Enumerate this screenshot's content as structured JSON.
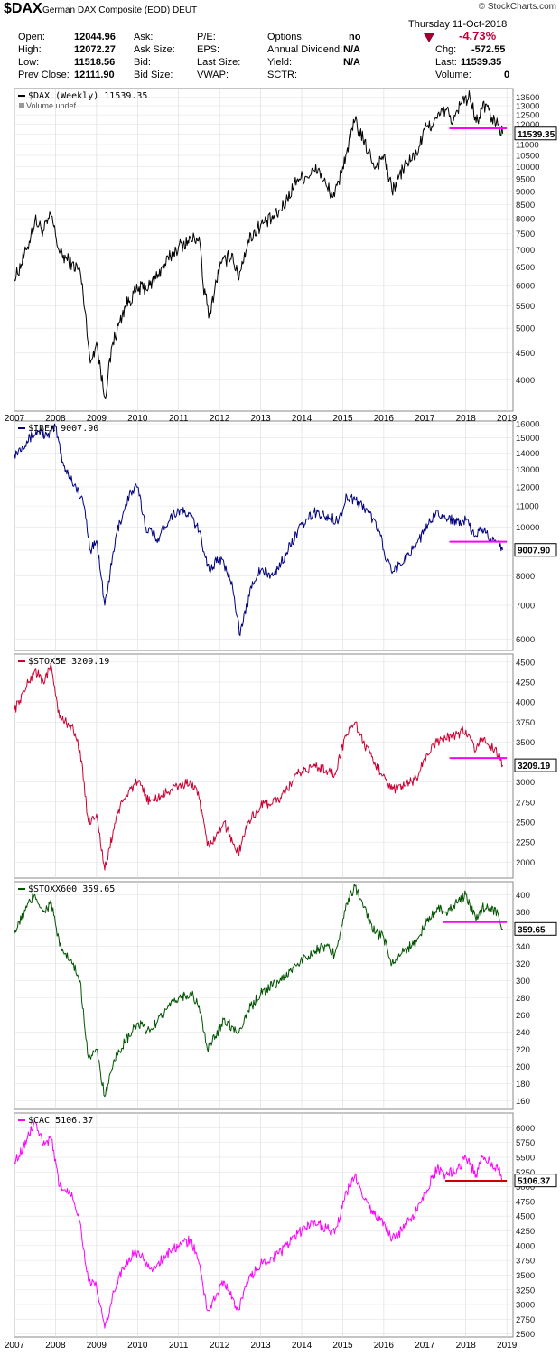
{
  "header": {
    "symbol": "$DAX",
    "company": "German DAX Composite (EOD)",
    "exchange": "DEUT",
    "brand": "© StockCharts.com",
    "date": "Thursday 11-Oct-2018",
    "change_pct": "-4.73%",
    "fields": {
      "open_label": "Open:",
      "open": "12044.96",
      "high_label": "High:",
      "high": "12072.27",
      "low_label": "Low:",
      "low": "11518.56",
      "prevclose_label": "Prev Close:",
      "prevclose": "12111.90",
      "ask_label": "Ask:",
      "asksize_label": "Ask Size:",
      "bid_label": "Bid:",
      "bidsize_label": "Bid Size:",
      "pe_label": "P/E:",
      "eps_label": "EPS:",
      "lastsize_label": "Last Size:",
      "vwap_label": "VWAP:",
      "options_label": "Options:",
      "options": "no",
      "dividend_label": "Annual Dividend:",
      "dividend": "N/A",
      "yield_label": "Yield:",
      "yield": "N/A",
      "sctr_label": "SCTR:",
      "chg_label": "Chg:",
      "chg": "-572.55",
      "last_label": "Last:",
      "last": "11539.35",
      "volume_label": "Volume:",
      "volume": "0"
    }
  },
  "chart_data": [
    {
      "type": "line",
      "id": "dax",
      "legend": "$DAX (Weekly) 11539.35",
      "legend2": "Volume undef",
      "color": "#000000",
      "scale": "log",
      "ylim": [
        3500,
        14000
      ],
      "yticks": [
        4000,
        4500,
        5000,
        5500,
        6000,
        6500,
        7000,
        7500,
        8000,
        8500,
        9000,
        9500,
        10000,
        10500,
        11000,
        11500,
        12000,
        12500,
        13000,
        13500
      ],
      "last_label": "11539.35",
      "hline": {
        "value": 11800,
        "from": 2017.6,
        "to": 2019.0,
        "color": "#ff00ff"
      },
      "anchors": [
        [
          2007.0,
          6150
        ],
        [
          2007.3,
          7000
        ],
        [
          2007.5,
          7950
        ],
        [
          2007.7,
          7600
        ],
        [
          2007.9,
          8100
        ],
        [
          2008.1,
          6900
        ],
        [
          2008.4,
          6600
        ],
        [
          2008.6,
          6400
        ],
        [
          2008.75,
          5200
        ],
        [
          2008.85,
          4300
        ],
        [
          2009.0,
          4700
        ],
        [
          2009.2,
          3700
        ],
        [
          2009.4,
          4700
        ],
        [
          2009.7,
          5500
        ],
        [
          2010.0,
          5900
        ],
        [
          2010.3,
          6000
        ],
        [
          2010.5,
          6300
        ],
        [
          2010.8,
          6800
        ],
        [
          2011.0,
          7100
        ],
        [
          2011.3,
          7300
        ],
        [
          2011.5,
          7400
        ],
        [
          2011.6,
          6000
        ],
        [
          2011.75,
          5300
        ],
        [
          2012.0,
          6500
        ],
        [
          2012.3,
          6900
        ],
        [
          2012.45,
          6200
        ],
        [
          2012.7,
          7300
        ],
        [
          2013.0,
          7800
        ],
        [
          2013.3,
          8000
        ],
        [
          2013.5,
          8300
        ],
        [
          2013.9,
          9500
        ],
        [
          2014.1,
          9600
        ],
        [
          2014.4,
          9900
        ],
        [
          2014.6,
          9200
        ],
        [
          2014.8,
          8800
        ],
        [
          2015.0,
          10000
        ],
        [
          2015.3,
          12200
        ],
        [
          2015.5,
          11200
        ],
        [
          2015.8,
          10000
        ],
        [
          2016.0,
          10500
        ],
        [
          2016.2,
          9000
        ],
        [
          2016.5,
          10000
        ],
        [
          2016.8,
          10600
        ],
        [
          2017.0,
          11700
        ],
        [
          2017.3,
          12300
        ],
        [
          2017.5,
          12800
        ],
        [
          2017.7,
          12200
        ],
        [
          2017.9,
          13200
        ],
        [
          2018.1,
          13500
        ],
        [
          2018.25,
          12100
        ],
        [
          2018.4,
          12800
        ],
        [
          2018.5,
          13100
        ],
        [
          2018.6,
          12400
        ],
        [
          2018.8,
          12000
        ],
        [
          2018.9,
          11540
        ]
      ]
    },
    {
      "type": "line",
      "id": "ibex",
      "legend": "$IBEX 9007.90",
      "color": "#000080",
      "scale": "log",
      "ylim": [
        5700,
        16200
      ],
      "yticks": [
        6000,
        7000,
        8000,
        9000,
        10000,
        11000,
        12000,
        13000,
        14000,
        15000,
        16000
      ],
      "last_label": "9007.90",
      "hline": {
        "value": 9350,
        "from": 2017.6,
        "to": 2019.0,
        "color": "#ff00ff"
      },
      "anchors": [
        [
          2007.0,
          13900
        ],
        [
          2007.3,
          14800
        ],
        [
          2007.6,
          15500
        ],
        [
          2007.8,
          15100
        ],
        [
          2008.0,
          15800
        ],
        [
          2008.2,
          13200
        ],
        [
          2008.5,
          12000
        ],
        [
          2008.7,
          11000
        ],
        [
          2008.85,
          9000
        ],
        [
          2009.0,
          9400
        ],
        [
          2009.2,
          7000
        ],
        [
          2009.5,
          9800
        ],
        [
          2009.8,
          11600
        ],
        [
          2010.0,
          12000
        ],
        [
          2010.2,
          10000
        ],
        [
          2010.5,
          9500
        ],
        [
          2010.8,
          10500
        ],
        [
          2011.0,
          10800
        ],
        [
          2011.3,
          10500
        ],
        [
          2011.5,
          9800
        ],
        [
          2011.75,
          8200
        ],
        [
          2012.0,
          8700
        ],
        [
          2012.3,
          7800
        ],
        [
          2012.5,
          6100
        ],
        [
          2012.8,
          7800
        ],
        [
          2013.0,
          8200
        ],
        [
          2013.3,
          8000
        ],
        [
          2013.5,
          8500
        ],
        [
          2013.9,
          9800
        ],
        [
          2014.3,
          10700
        ],
        [
          2014.6,
          10500
        ],
        [
          2014.9,
          10300
        ],
        [
          2015.1,
          11500
        ],
        [
          2015.3,
          11300
        ],
        [
          2015.6,
          10800
        ],
        [
          2015.9,
          9800
        ],
        [
          2016.0,
          9000
        ],
        [
          2016.2,
          8100
        ],
        [
          2016.5,
          8600
        ],
        [
          2016.8,
          9300
        ],
        [
          2017.0,
          9800
        ],
        [
          2017.3,
          10800
        ],
        [
          2017.5,
          10400
        ],
        [
          2017.8,
          10300
        ],
        [
          2018.0,
          10300
        ],
        [
          2018.2,
          9600
        ],
        [
          2018.4,
          9900
        ],
        [
          2018.6,
          9500
        ],
        [
          2018.8,
          9400
        ],
        [
          2018.9,
          9008
        ]
      ]
    },
    {
      "type": "line",
      "id": "stox5e",
      "legend": "$STOX5E 3209.19",
      "color": "#cc0033",
      "scale": "linear",
      "ylim": [
        1800,
        4600
      ],
      "yticks": [
        2000,
        2250,
        2500,
        2750,
        3000,
        3250,
        3500,
        3750,
        4000,
        4250,
        4500
      ],
      "last_label": "3209.19",
      "hline": {
        "value": 3300,
        "from": 2017.6,
        "to": 2019.0,
        "color": "#ff00ff"
      },
      "anchors": [
        [
          2007.0,
          3900
        ],
        [
          2007.3,
          4200
        ],
        [
          2007.5,
          4400
        ],
        [
          2007.7,
          4250
        ],
        [
          2007.9,
          4450
        ],
        [
          2008.1,
          3800
        ],
        [
          2008.4,
          3700
        ],
        [
          2008.6,
          3400
        ],
        [
          2008.8,
          2500
        ],
        [
          2009.0,
          2600
        ],
        [
          2009.2,
          1900
        ],
        [
          2009.5,
          2600
        ],
        [
          2009.8,
          2900
        ],
        [
          2010.0,
          3000
        ],
        [
          2010.3,
          2750
        ],
        [
          2010.5,
          2800
        ],
        [
          2010.8,
          2900
        ],
        [
          2011.0,
          2950
        ],
        [
          2011.3,
          3000
        ],
        [
          2011.5,
          2800
        ],
        [
          2011.7,
          2200
        ],
        [
          2011.9,
          2300
        ],
        [
          2012.1,
          2500
        ],
        [
          2012.45,
          2100
        ],
        [
          2012.7,
          2500
        ],
        [
          2013.0,
          2700
        ],
        [
          2013.5,
          2800
        ],
        [
          2013.9,
          3100
        ],
        [
          2014.3,
          3200
        ],
        [
          2014.6,
          3150
        ],
        [
          2014.8,
          3100
        ],
        [
          2015.1,
          3600
        ],
        [
          2015.3,
          3750
        ],
        [
          2015.5,
          3500
        ],
        [
          2015.8,
          3200
        ],
        [
          2016.0,
          3100
        ],
        [
          2016.2,
          2900
        ],
        [
          2016.5,
          2950
        ],
        [
          2016.8,
          3050
        ],
        [
          2017.0,
          3300
        ],
        [
          2017.3,
          3500
        ],
        [
          2017.5,
          3550
        ],
        [
          2017.8,
          3600
        ],
        [
          2018.0,
          3650
        ],
        [
          2018.25,
          3400
        ],
        [
          2018.4,
          3550
        ],
        [
          2018.6,
          3450
        ],
        [
          2018.8,
          3350
        ],
        [
          2018.9,
          3210
        ]
      ]
    },
    {
      "type": "line",
      "id": "stoxx600",
      "legend": "$STOXX600 359.65",
      "color": "#005500",
      "scale": "linear",
      "ylim": [
        150,
        415
      ],
      "yticks": [
        160,
        180,
        200,
        220,
        240,
        260,
        280,
        300,
        320,
        340,
        360,
        380,
        400
      ],
      "last_label": "359.65",
      "hline": {
        "value": 368,
        "from": 2017.45,
        "to": 2019.0,
        "color": "#ff00ff"
      },
      "anchors": [
        [
          2007.0,
          355
        ],
        [
          2007.3,
          385
        ],
        [
          2007.5,
          400
        ],
        [
          2007.7,
          380
        ],
        [
          2007.9,
          390
        ],
        [
          2008.1,
          340
        ],
        [
          2008.4,
          320
        ],
        [
          2008.6,
          300
        ],
        [
          2008.8,
          210
        ],
        [
          2009.0,
          220
        ],
        [
          2009.2,
          165
        ],
        [
          2009.5,
          215
        ],
        [
          2009.8,
          235
        ],
        [
          2010.0,
          250
        ],
        [
          2010.3,
          240
        ],
        [
          2010.5,
          255
        ],
        [
          2010.8,
          270
        ],
        [
          2011.0,
          280
        ],
        [
          2011.3,
          285
        ],
        [
          2011.5,
          270
        ],
        [
          2011.7,
          220
        ],
        [
          2011.9,
          235
        ],
        [
          2012.1,
          255
        ],
        [
          2012.45,
          240
        ],
        [
          2012.7,
          265
        ],
        [
          2013.0,
          285
        ],
        [
          2013.3,
          295
        ],
        [
          2013.5,
          300
        ],
        [
          2013.9,
          320
        ],
        [
          2014.3,
          335
        ],
        [
          2014.6,
          340
        ],
        [
          2014.8,
          330
        ],
        [
          2015.1,
          390
        ],
        [
          2015.3,
          410
        ],
        [
          2015.5,
          385
        ],
        [
          2015.8,
          355
        ],
        [
          2016.0,
          350
        ],
        [
          2016.2,
          320
        ],
        [
          2016.5,
          335
        ],
        [
          2016.8,
          345
        ],
        [
          2017.0,
          365
        ],
        [
          2017.3,
          385
        ],
        [
          2017.5,
          380
        ],
        [
          2017.8,
          390
        ],
        [
          2018.0,
          400
        ],
        [
          2018.25,
          370
        ],
        [
          2018.4,
          385
        ],
        [
          2018.6,
          385
        ],
        [
          2018.8,
          375
        ],
        [
          2018.9,
          360
        ]
      ]
    },
    {
      "type": "line",
      "id": "cac",
      "legend": "$CAC 5106.37",
      "color": "#ff00ff",
      "scale": "linear",
      "ylim": [
        2450,
        6250
      ],
      "yticks": [
        2500,
        2750,
        3000,
        3250,
        3500,
        3750,
        4000,
        4250,
        4500,
        4750,
        5000,
        5250,
        5500,
        5750,
        6000
      ],
      "last_label": "5106.37",
      "hline": {
        "value": 5100,
        "from": 2017.5,
        "to": 2019.0,
        "color": "#cc0000"
      },
      "anchors": [
        [
          2007.0,
          5400
        ],
        [
          2007.3,
          5800
        ],
        [
          2007.5,
          6100
        ],
        [
          2007.7,
          5700
        ],
        [
          2007.9,
          5800
        ],
        [
          2008.1,
          5000
        ],
        [
          2008.4,
          4900
        ],
        [
          2008.6,
          4400
        ],
        [
          2008.8,
          3400
        ],
        [
          2009.0,
          3300
        ],
        [
          2009.2,
          2600
        ],
        [
          2009.5,
          3400
        ],
        [
          2009.8,
          3800
        ],
        [
          2010.0,
          3900
        ],
        [
          2010.3,
          3600
        ],
        [
          2010.5,
          3700
        ],
        [
          2010.8,
          3900
        ],
        [
          2011.0,
          4000
        ],
        [
          2011.3,
          4100
        ],
        [
          2011.5,
          3700
        ],
        [
          2011.7,
          2900
        ],
        [
          2011.9,
          3100
        ],
        [
          2012.1,
          3400
        ],
        [
          2012.45,
          2900
        ],
        [
          2012.7,
          3400
        ],
        [
          2013.0,
          3700
        ],
        [
          2013.3,
          3800
        ],
        [
          2013.5,
          3900
        ],
        [
          2013.9,
          4200
        ],
        [
          2014.3,
          4400
        ],
        [
          2014.6,
          4300
        ],
        [
          2014.8,
          4200
        ],
        [
          2015.1,
          4900
        ],
        [
          2015.3,
          5200
        ],
        [
          2015.5,
          4800
        ],
        [
          2015.8,
          4500
        ],
        [
          2016.0,
          4400
        ],
        [
          2016.2,
          4100
        ],
        [
          2016.5,
          4300
        ],
        [
          2016.8,
          4600
        ],
        [
          2017.0,
          4900
        ],
        [
          2017.3,
          5300
        ],
        [
          2017.5,
          5200
        ],
        [
          2017.8,
          5300
        ],
        [
          2018.0,
          5500
        ],
        [
          2018.25,
          5200
        ],
        [
          2018.4,
          5500
        ],
        [
          2018.6,
          5400
        ],
        [
          2018.8,
          5300
        ],
        [
          2018.9,
          5106
        ]
      ]
    }
  ],
  "xaxis": {
    "start": 2007.0,
    "end": 2019.15,
    "ticks": [
      {
        "x": 2007.0,
        "label": "2007"
      },
      {
        "x": 2008.0,
        "label": "2008"
      },
      {
        "x": 2009.0,
        "label": "2009"
      },
      {
        "x": 2010.0,
        "label": "2010"
      },
      {
        "x": 2011.0,
        "label": "2011"
      },
      {
        "x": 2012.0,
        "label": "2012"
      },
      {
        "x": 2013.0,
        "label": "2013"
      },
      {
        "x": 2014.0,
        "label": "2014"
      },
      {
        "x": 2015.0,
        "label": "2015"
      },
      {
        "x": 2016.0,
        "label": "2016"
      },
      {
        "x": 2017.0,
        "label": "2017"
      },
      {
        "x": 2018.0,
        "label": "2018"
      },
      {
        "x": 2019.0,
        "label": "2019"
      }
    ]
  }
}
